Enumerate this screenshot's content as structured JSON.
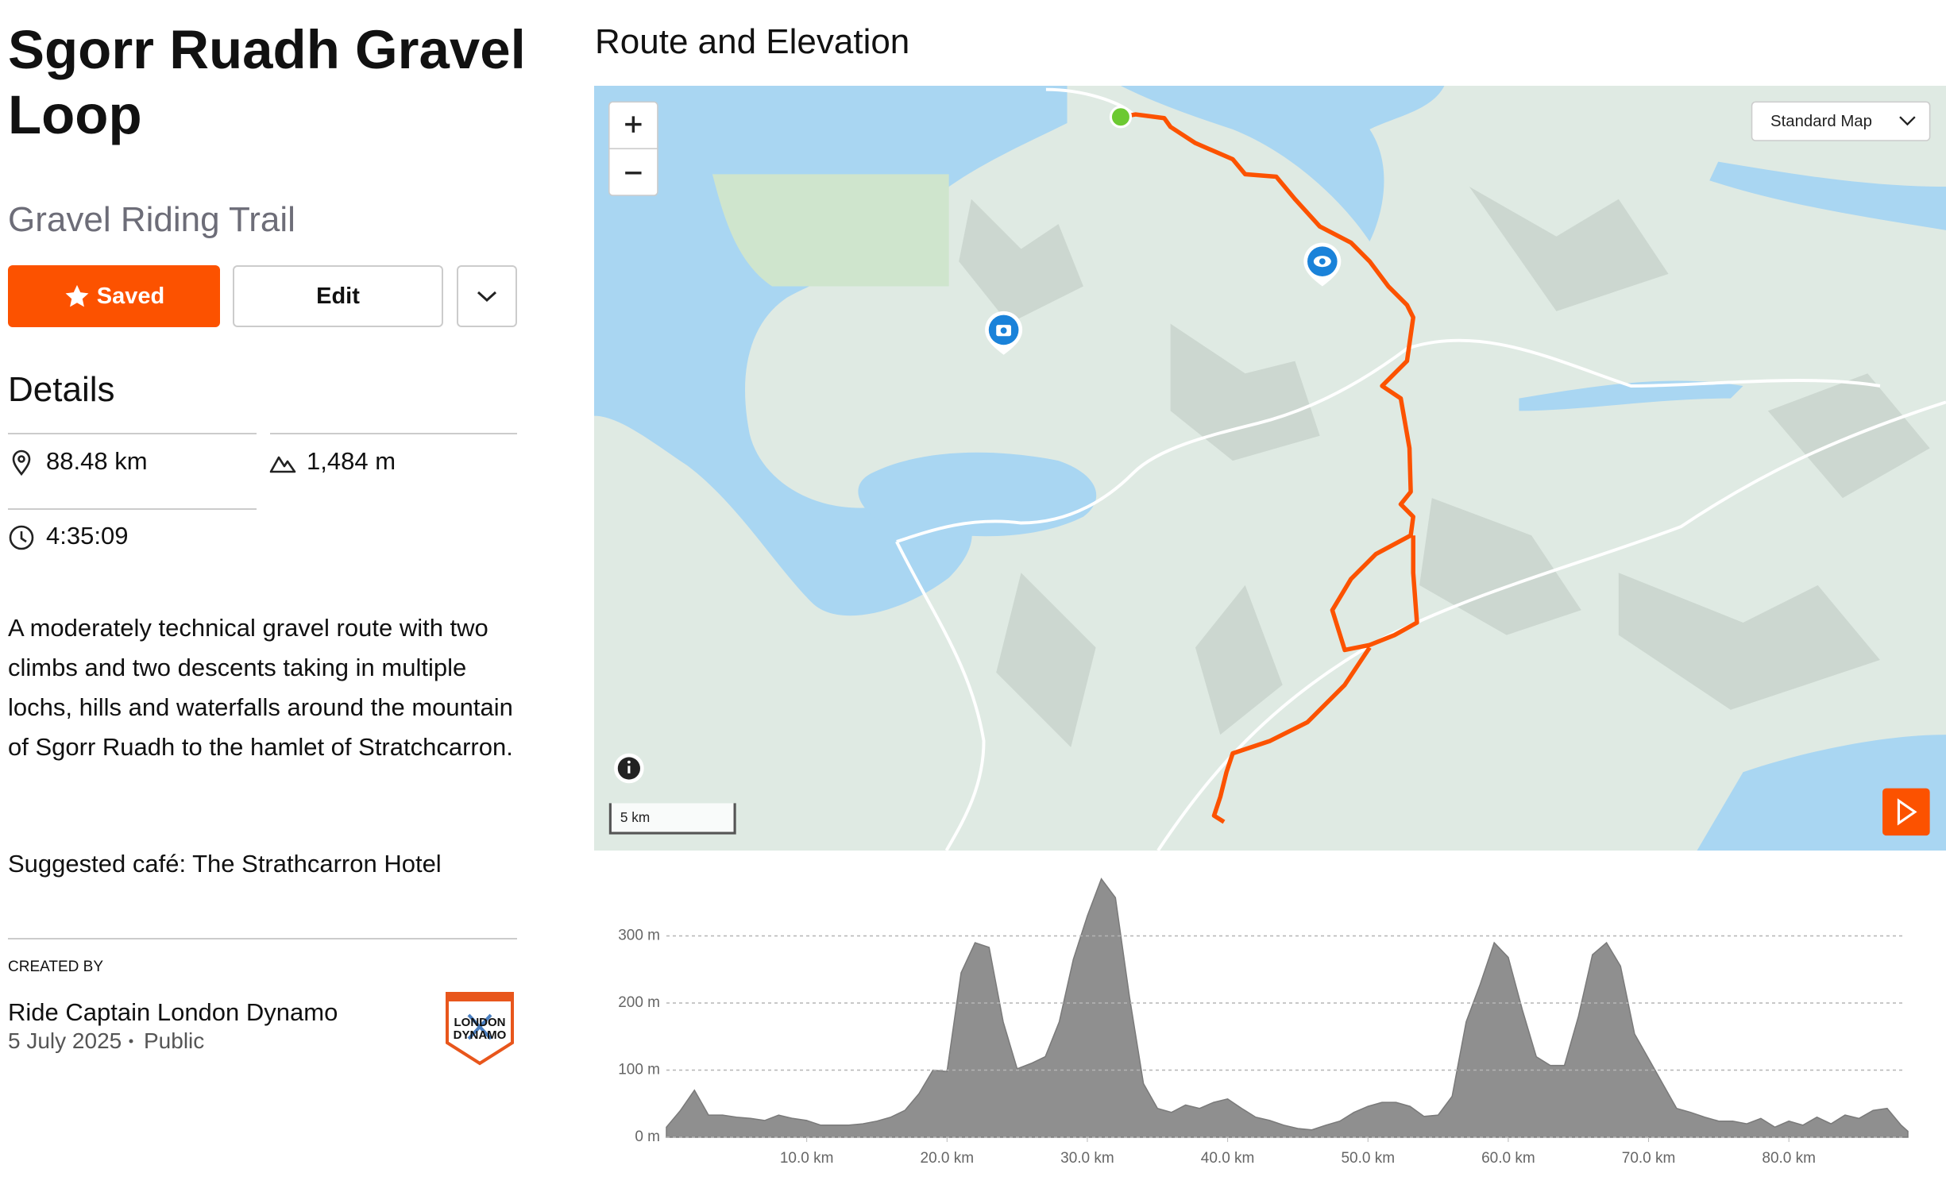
{
  "header": {
    "title": "Sgorr Ruadh Gravel Loop",
    "subtitle": "Gravel Riding Trail"
  },
  "actions": {
    "saved": "Saved",
    "edit": "Edit"
  },
  "details": {
    "heading": "Details",
    "distance": "88.48 km",
    "elevation_gain": "1,484 m",
    "time": "4:35:09",
    "description": "A moderately technical gravel route with two climbs and two descents taking in multiple lochs, hills and waterfalls around the mountain of Sgorr Ruadh to the hamlet of Stratchcarron.",
    "cafe": "Suggested café: The Strathcarron Hotel"
  },
  "creator": {
    "label": "CREATED BY",
    "name": "Ride Captain London Dynamo",
    "date": "5 July 2025",
    "visibility": "Public",
    "logo_text": [
      "LONDON",
      "DYNAMO"
    ]
  },
  "map": {
    "heading": "Route and Elevation",
    "layer": "Standard Map",
    "scale": "5 km"
  },
  "chart_data": {
    "type": "area",
    "color": "#8f8f8f",
    "grid": true,
    "x": [
      0,
      1,
      2,
      3,
      4,
      5,
      6,
      7,
      8,
      9,
      10,
      11,
      12,
      13,
      14,
      15,
      16,
      17,
      18,
      19,
      20,
      21,
      22,
      23,
      24,
      25,
      26,
      27,
      28,
      29,
      30,
      31,
      32,
      33,
      34,
      35,
      36,
      37,
      38,
      39,
      40,
      41,
      42,
      43,
      44,
      45,
      46,
      47,
      48,
      49,
      50,
      51,
      52,
      53,
      54,
      55,
      56,
      57,
      58,
      59,
      60,
      61,
      62,
      63,
      64,
      65,
      66,
      67,
      68,
      69,
      70,
      71,
      72,
      73,
      74,
      75,
      76,
      77,
      78,
      79,
      80,
      81,
      82,
      83,
      84,
      85,
      86,
      87,
      88,
      88.48
    ],
    "values": [
      15,
      40,
      70,
      33,
      33,
      30,
      28,
      25,
      33,
      28,
      25,
      18,
      18,
      18,
      20,
      24,
      30,
      40,
      65,
      100,
      98,
      245,
      290,
      283,
      172,
      102,
      110,
      120,
      172,
      265,
      330,
      385,
      357,
      210,
      80,
      43,
      37,
      48,
      43,
      52,
      57,
      43,
      30,
      25,
      18,
      13,
      11,
      18,
      24,
      37,
      46,
      52,
      52,
      46,
      31,
      33,
      61,
      172,
      228,
      290,
      268,
      190,
      120,
      107,
      107,
      180,
      272,
      290,
      255,
      154,
      117,
      80,
      43,
      37,
      30,
      24,
      24,
      20,
      28,
      15,
      24,
      18,
      30,
      20,
      33,
      28,
      40,
      43,
      18,
      9
    ],
    "xlim": [
      0,
      88.48
    ],
    "ylim": [
      0,
      400
    ],
    "xticks": [
      {
        "value": 10,
        "label": "10.0 km"
      },
      {
        "value": 20,
        "label": "20.0 km"
      },
      {
        "value": 30,
        "label": "30.0 km"
      },
      {
        "value": 40,
        "label": "40.0 km"
      },
      {
        "value": 50,
        "label": "50.0 km"
      },
      {
        "value": 60,
        "label": "60.0 km"
      },
      {
        "value": 70,
        "label": "70.0 km"
      },
      {
        "value": 80,
        "label": "80.0 km"
      }
    ],
    "yticks": [
      {
        "value": 0,
        "label": "0 m"
      },
      {
        "value": 100,
        "label": "100 m"
      },
      {
        "value": 200,
        "label": "200 m"
      },
      {
        "value": 300,
        "label": "300 m"
      }
    ]
  }
}
